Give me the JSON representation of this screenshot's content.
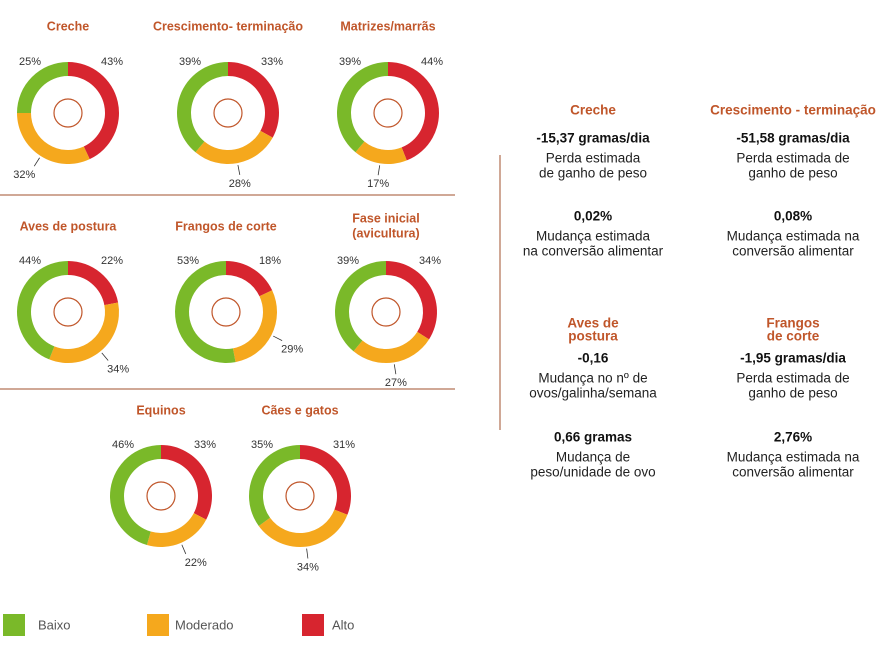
{
  "legend": [
    {
      "label": "Baixo",
      "color": "#7ab929"
    },
    {
      "label": "Moderado",
      "color": "#f5a81d"
    },
    {
      "label": "Alto",
      "color": "#d7252f"
    }
  ],
  "chart_data": [
    {
      "type": "pie",
      "title": "Creche",
      "values": [
        25,
        32,
        43
      ],
      "value_labels": [
        "25%",
        "32%",
        "43%"
      ]
    },
    {
      "type": "pie",
      "title": "Crescimento- terminação",
      "values": [
        39,
        28,
        33
      ],
      "value_labels": [
        "39%",
        "28%",
        "33%"
      ]
    },
    {
      "type": "pie",
      "title": "Matrizes/marrãs",
      "values": [
        39,
        17,
        44
      ],
      "value_labels": [
        "39%",
        "17%",
        "44%"
      ]
    },
    {
      "type": "pie",
      "title": "Aves de postura",
      "values": [
        44,
        34,
        22
      ],
      "value_labels": [
        "44%",
        "34%",
        "22%"
      ]
    },
    {
      "type": "pie",
      "title": "Frangos de corte",
      "values": [
        53,
        29,
        18
      ],
      "value_labels": [
        "53%",
        "29%",
        "18%"
      ]
    },
    {
      "type": "pie",
      "title": [
        "Fase inicial",
        "(avicultura)"
      ],
      "values": [
        39,
        27,
        34
      ],
      "value_labels": [
        "39%",
        "27%",
        "34%"
      ]
    },
    {
      "type": "pie",
      "title": "Equinos",
      "values": [
        46,
        22,
        33
      ],
      "value_labels": [
        "46%",
        "22%",
        "33%"
      ]
    },
    {
      "type": "pie",
      "title": "Cães e gatos",
      "values": [
        35,
        34,
        31
      ],
      "value_labels": [
        "35%",
        "34%",
        "31%"
      ]
    }
  ],
  "panel": [
    {
      "title": [
        "Creche"
      ],
      "items": [
        {
          "value": "-15,37 gramas/dia",
          "text": [
            "Perda estimada",
            "de ganho de peso"
          ]
        },
        {
          "value": "0,02%",
          "text": [
            "Mudança estimada",
            "na conversão alimentar"
          ]
        }
      ]
    },
    {
      "title": [
        "Crescimento - terminação"
      ],
      "items": [
        {
          "value": "-51,58 gramas/dia",
          "text": [
            "Perda estimada de",
            "ganho de peso"
          ]
        },
        {
          "value": "0,08%",
          "text": [
            "Mudança estimada na",
            "conversão alimentar"
          ]
        }
      ]
    },
    {
      "title": [
        "Aves de",
        "postura"
      ],
      "items": [
        {
          "value": "-0,16",
          "text": [
            "Mudança no nº de",
            "ovos/galinha/semana"
          ]
        },
        {
          "value": "0,66 gramas",
          "text": [
            "Mudança de",
            "peso/unidade de ovo"
          ]
        }
      ]
    },
    {
      "title": [
        "Frangos",
        "de corte"
      ],
      "items": [
        {
          "value": "-1,95 gramas/dia",
          "text": [
            "Perda estimada de",
            "ganho de peso"
          ]
        },
        {
          "value": "2,76%",
          "text": [
            "Mudança estimada na",
            "conversão alimentar"
          ]
        }
      ]
    }
  ]
}
